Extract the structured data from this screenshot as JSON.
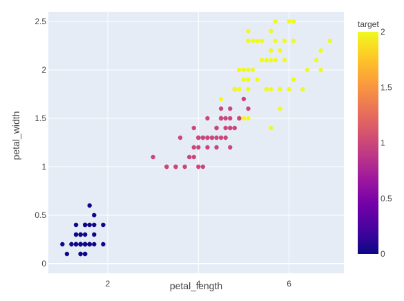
{
  "chart_data": {
    "type": "scatter",
    "title": "",
    "xlabel": "petal_length",
    "ylabel": "petal_width",
    "xlim": [
      0.69,
      7.21
    ],
    "ylim": [
      -0.1,
      2.6
    ],
    "x_ticks": [
      2,
      4,
      6
    ],
    "y_ticks": [
      0,
      0.5,
      1,
      1.5,
      2,
      2.5
    ],
    "x_tick_labels": [
      "2",
      "4",
      "6"
    ],
    "y_tick_labels": [
      "0",
      "0.5",
      "1",
      "1.5",
      "2",
      "2.5"
    ],
    "grid": true,
    "background": "#E5ECF6",
    "color_var": "target",
    "colorbar": {
      "title": "target",
      "range": [
        0,
        2
      ],
      "ticks": [
        0,
        0.5,
        1,
        1.5,
        2
      ],
      "tick_labels": [
        "0",
        "0.5",
        "1",
        "1.5",
        "2"
      ],
      "colorscale": [
        "#0d0887",
        "#46039f",
        "#7201a8",
        "#9c179e",
        "#bd3786",
        "#d8576b",
        "#ed7953",
        "#fb9f3a",
        "#fdca26",
        "#f0f921"
      ]
    },
    "points": [
      [
        1.4,
        0.2,
        0
      ],
      [
        1.4,
        0.2,
        0
      ],
      [
        1.3,
        0.2,
        0
      ],
      [
        1.5,
        0.2,
        0
      ],
      [
        1.4,
        0.2,
        0
      ],
      [
        1.7,
        0.4,
        0
      ],
      [
        1.4,
        0.3,
        0
      ],
      [
        1.5,
        0.2,
        0
      ],
      [
        1.4,
        0.2,
        0
      ],
      [
        1.5,
        0.1,
        0
      ],
      [
        1.5,
        0.2,
        0
      ],
      [
        1.6,
        0.2,
        0
      ],
      [
        1.4,
        0.1,
        0
      ],
      [
        1.1,
        0.1,
        0
      ],
      [
        1.2,
        0.2,
        0
      ],
      [
        1.5,
        0.4,
        0
      ],
      [
        1.3,
        0.4,
        0
      ],
      [
        1.4,
        0.3,
        0
      ],
      [
        1.7,
        0.3,
        0
      ],
      [
        1.5,
        0.3,
        0
      ],
      [
        1.7,
        0.2,
        0
      ],
      [
        1.5,
        0.4,
        0
      ],
      [
        1.0,
        0.2,
        0
      ],
      [
        1.7,
        0.5,
        0
      ],
      [
        1.9,
        0.2,
        0
      ],
      [
        1.6,
        0.2,
        0
      ],
      [
        1.6,
        0.4,
        0
      ],
      [
        1.5,
        0.2,
        0
      ],
      [
        1.4,
        0.2,
        0
      ],
      [
        1.6,
        0.2,
        0
      ],
      [
        1.6,
        0.2,
        0
      ],
      [
        1.5,
        0.4,
        0
      ],
      [
        1.5,
        0.1,
        0
      ],
      [
        1.4,
        0.2,
        0
      ],
      [
        1.5,
        0.2,
        0
      ],
      [
        1.2,
        0.2,
        0
      ],
      [
        1.3,
        0.2,
        0
      ],
      [
        1.4,
        0.1,
        0
      ],
      [
        1.3,
        0.2,
        0
      ],
      [
        1.5,
        0.2,
        0
      ],
      [
        1.3,
        0.3,
        0
      ],
      [
        1.3,
        0.3,
        0
      ],
      [
        1.3,
        0.2,
        0
      ],
      [
        1.6,
        0.6,
        0
      ],
      [
        1.9,
        0.4,
        0
      ],
      [
        1.4,
        0.3,
        0
      ],
      [
        1.6,
        0.2,
        0
      ],
      [
        1.4,
        0.2,
        0
      ],
      [
        1.5,
        0.2,
        0
      ],
      [
        1.4,
        0.2,
        0
      ],
      [
        4.7,
        1.4,
        1
      ],
      [
        4.5,
        1.5,
        1
      ],
      [
        4.9,
        1.5,
        1
      ],
      [
        4.0,
        1.3,
        1
      ],
      [
        4.6,
        1.5,
        1
      ],
      [
        4.5,
        1.3,
        1
      ],
      [
        4.7,
        1.6,
        1
      ],
      [
        3.3,
        1.0,
        1
      ],
      [
        4.6,
        1.3,
        1
      ],
      [
        3.9,
        1.4,
        1
      ],
      [
        3.5,
        1.0,
        1
      ],
      [
        4.2,
        1.5,
        1
      ],
      [
        4.0,
        1.0,
        1
      ],
      [
        4.7,
        1.4,
        1
      ],
      [
        3.6,
        1.3,
        1
      ],
      [
        4.4,
        1.4,
        1
      ],
      [
        4.5,
        1.5,
        1
      ],
      [
        4.1,
        1.0,
        1
      ],
      [
        4.5,
        1.5,
        1
      ],
      [
        3.9,
        1.1,
        1
      ],
      [
        4.8,
        1.8,
        1
      ],
      [
        4.0,
        1.3,
        1
      ],
      [
        4.9,
        1.5,
        1
      ],
      [
        4.7,
        1.2,
        1
      ],
      [
        4.3,
        1.3,
        1
      ],
      [
        4.4,
        1.4,
        1
      ],
      [
        4.8,
        1.4,
        1
      ],
      [
        5.0,
        1.7,
        1
      ],
      [
        4.5,
        1.5,
        1
      ],
      [
        3.5,
        1.0,
        1
      ],
      [
        3.8,
        1.1,
        1
      ],
      [
        3.7,
        1.0,
        1
      ],
      [
        3.9,
        1.2,
        1
      ],
      [
        5.1,
        1.6,
        1
      ],
      [
        4.5,
        1.5,
        1
      ],
      [
        4.5,
        1.6,
        1
      ],
      [
        4.7,
        1.5,
        1
      ],
      [
        4.4,
        1.3,
        1
      ],
      [
        4.1,
        1.3,
        1
      ],
      [
        4.0,
        1.3,
        1
      ],
      [
        4.4,
        1.2,
        1
      ],
      [
        4.6,
        1.4,
        1
      ],
      [
        4.0,
        1.2,
        1
      ],
      [
        3.3,
        1.0,
        1
      ],
      [
        4.2,
        1.3,
        1
      ],
      [
        4.2,
        1.2,
        1
      ],
      [
        4.2,
        1.3,
        1
      ],
      [
        4.3,
        1.3,
        1
      ],
      [
        3.0,
        1.1,
        1
      ],
      [
        4.1,
        1.3,
        1
      ],
      [
        6.0,
        2.5,
        2
      ],
      [
        5.1,
        1.9,
        2
      ],
      [
        5.9,
        2.1,
        2
      ],
      [
        5.6,
        1.8,
        2
      ],
      [
        5.8,
        2.2,
        2
      ],
      [
        6.6,
        2.1,
        2
      ],
      [
        4.5,
        1.7,
        2
      ],
      [
        6.3,
        1.8,
        2
      ],
      [
        5.8,
        1.8,
        2
      ],
      [
        6.1,
        2.5,
        2
      ],
      [
        5.1,
        2.0,
        2
      ],
      [
        5.3,
        1.9,
        2
      ],
      [
        5.5,
        2.1,
        2
      ],
      [
        5.0,
        2.0,
        2
      ],
      [
        5.1,
        2.4,
        2
      ],
      [
        5.3,
        2.3,
        2
      ],
      [
        5.5,
        1.8,
        2
      ],
      [
        6.7,
        2.2,
        2
      ],
      [
        6.9,
        2.3,
        2
      ],
      [
        5.0,
        1.5,
        2
      ],
      [
        5.7,
        2.3,
        2
      ],
      [
        4.9,
        2.0,
        2
      ],
      [
        6.7,
        2.0,
        2
      ],
      [
        4.9,
        1.8,
        2
      ],
      [
        5.7,
        2.1,
        2
      ],
      [
        6.0,
        1.8,
        2
      ],
      [
        4.8,
        1.8,
        2
      ],
      [
        4.9,
        1.8,
        2
      ],
      [
        5.6,
        2.1,
        2
      ],
      [
        5.8,
        1.6,
        2
      ],
      [
        6.1,
        1.9,
        2
      ],
      [
        6.4,
        2.0,
        2
      ],
      [
        5.6,
        2.2,
        2
      ],
      [
        5.1,
        1.5,
        2
      ],
      [
        5.6,
        1.4,
        2
      ],
      [
        6.1,
        2.3,
        2
      ],
      [
        5.6,
        2.4,
        2
      ],
      [
        5.5,
        1.8,
        2
      ],
      [
        4.8,
        1.8,
        2
      ],
      [
        5.4,
        2.1,
        2
      ],
      [
        5.6,
        2.4,
        2
      ],
      [
        5.1,
        2.3,
        2
      ],
      [
        5.1,
        1.9,
        2
      ],
      [
        5.9,
        2.3,
        2
      ],
      [
        5.7,
        2.5,
        2
      ],
      [
        5.2,
        2.3,
        2
      ],
      [
        5.0,
        1.9,
        2
      ],
      [
        5.2,
        2.0,
        2
      ],
      [
        5.4,
        2.3,
        2
      ],
      [
        5.1,
        1.8,
        2
      ]
    ]
  }
}
